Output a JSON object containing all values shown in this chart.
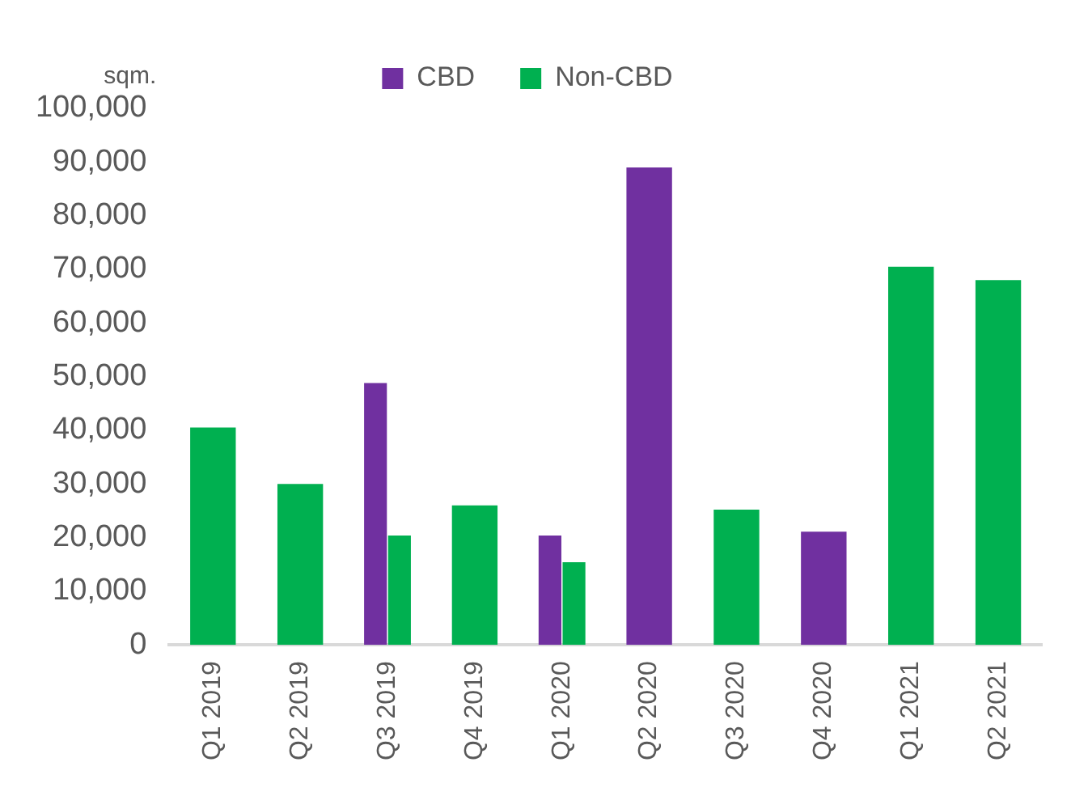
{
  "chart_data": {
    "type": "bar",
    "ylabel": "sqm.",
    "categories": [
      "Q1 2019",
      "Q2 2019",
      "Q3 2019",
      "Q4 2019",
      "Q1 2020",
      "Q2 2020",
      "Q3 2020",
      "Q4 2020",
      "Q1 2021",
      "Q2 2021"
    ],
    "series": [
      {
        "name": "CBD",
        "color": "#7030a0",
        "values": [
          null,
          null,
          48800,
          null,
          20400,
          89000,
          null,
          21100,
          null,
          null
        ]
      },
      {
        "name": "Non-CBD",
        "color": "#00b050",
        "values": [
          40500,
          30000,
          20400,
          26000,
          15400,
          null,
          25200,
          null,
          70500,
          68000
        ]
      }
    ],
    "ylim": [
      0,
      100000
    ],
    "yticks": [
      0,
      {
        "value": 10000,
        "label": "10,000"
      },
      {
        "value": 20000,
        "label": "20,000"
      },
      {
        "value": 30000,
        "label": "30,000"
      },
      {
        "value": 40000,
        "label": "40,000"
      },
      {
        "value": 50000,
        "label": "50,000"
      },
      {
        "value": 60000,
        "label": "60,000"
      },
      {
        "value": 70000,
        "label": "70,000"
      },
      {
        "value": 80000,
        "label": "80,000"
      },
      {
        "value": 90000,
        "label": "90,000"
      },
      {
        "value": 100000,
        "label": "100,000"
      }
    ],
    "grid": false,
    "legend": "top"
  }
}
